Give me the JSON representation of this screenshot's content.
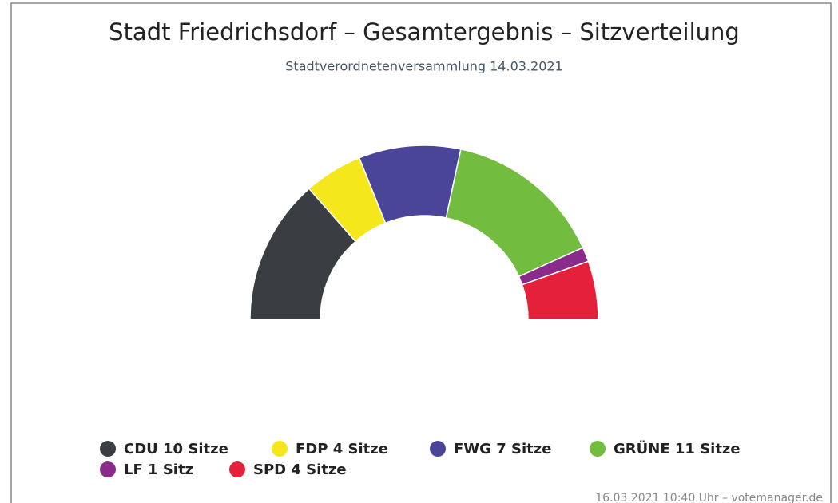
{
  "chart_data": {
    "type": "semi-donut",
    "title": "Stadt Friedrichsdorf – Gesamtergebnis – Sitzverteilung",
    "subtitle": "Stadtverordnetenversammlung 14.03.2021",
    "categories": [
      "CDU 10 Sitze",
      "FDP 4 Sitze",
      "FWG 7 Sitze",
      "GRÜNE 11 Sitze",
      "LF 1 Sitz",
      "SPD 4 Sitze"
    ],
    "values": [
      10,
      4,
      7,
      11,
      1,
      4
    ],
    "colors": [
      "#3a3d42",
      "#f4e81c",
      "#4a4599",
      "#72bd3f",
      "#8a2a8a",
      "#e4203a"
    ],
    "footer": "16.03.2021 10:40 Uhr – votemanager.de"
  }
}
